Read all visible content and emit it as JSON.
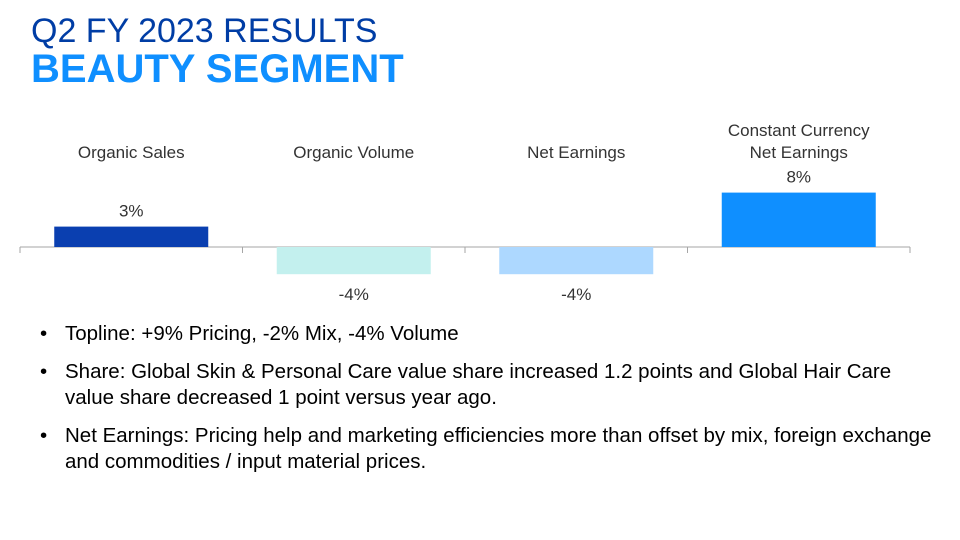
{
  "header": {
    "title": "Q2 FY 2023 RESULTS",
    "subtitle": "BEAUTY SEGMENT"
  },
  "chart_data": {
    "type": "bar",
    "categories": [
      [
        "Organic Sales"
      ],
      [
        "Organic Volume"
      ],
      [
        "Net Earnings"
      ],
      [
        "Constant Currency",
        "Net Earnings"
      ]
    ],
    "values": [
      3,
      -4,
      -4,
      8
    ],
    "value_labels": [
      "3%",
      "-4%",
      "-4%",
      "8%"
    ],
    "bar_colors": [
      "#0a3fb0",
      "#c3f0ee",
      "#add8ff",
      "#0f8fff"
    ],
    "axis_color": "#a6a6a6",
    "ylim": [
      -4,
      8
    ]
  },
  "bullets": [
    "Topline: +9% Pricing, -2% Mix, -4% Volume",
    "Share: Global Skin & Personal Care value share increased 1.2 points and Global Hair Care value share decreased 1 point versus year ago.",
    "Net Earnings: Pricing help and marketing efficiencies more than offset by mix, foreign exchange and commodities / input material prices."
  ]
}
